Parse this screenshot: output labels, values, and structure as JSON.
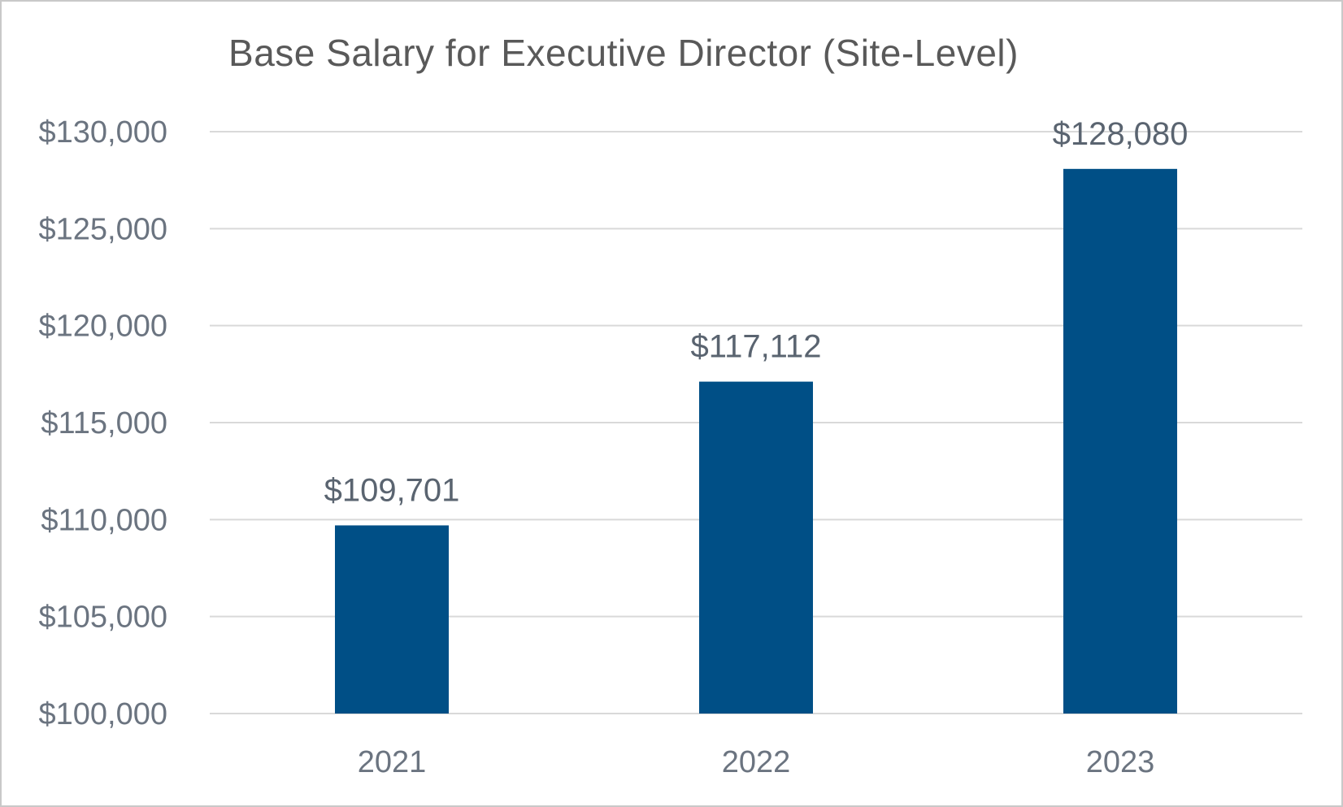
{
  "chart_data": {
    "type": "bar",
    "title": "Base Salary for Executive Director (Site-Level)",
    "categories": [
      "2021",
      "2022",
      "2023"
    ],
    "values": [
      109701,
      117112,
      128080
    ],
    "data_labels": [
      "$109,701",
      "$117,112",
      "$128,080"
    ],
    "ylim": [
      100000,
      130000
    ],
    "yticks": [
      100000,
      105000,
      110000,
      115000,
      120000,
      125000,
      130000
    ],
    "ytick_labels": [
      "$100,000",
      "$105,000",
      "$110,000",
      "$115,000",
      "$120,000",
      "$125,000",
      "$130,000"
    ],
    "grid": true,
    "legend": "none",
    "bar_color": "#004f86",
    "grid_color": "#d9d9d9"
  }
}
